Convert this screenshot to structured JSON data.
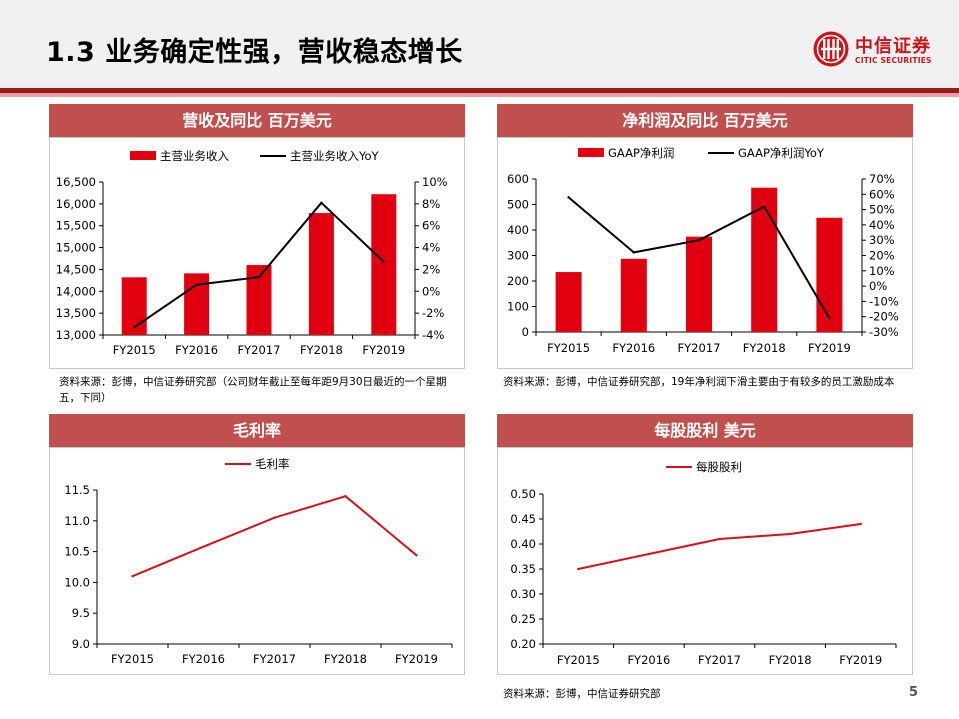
{
  "header": {
    "title": "1.3 业务确定性强，营收稳态增长",
    "logo_cn": "中信证券",
    "logo_en": "CITIC SECURITIES",
    "brand_color": "#c8161d"
  },
  "panels": {
    "revenue": {
      "title": "营收及同比  百万美元"
    },
    "net_income": {
      "title": "净利润及同比  百万美元"
    },
    "gross_margin": {
      "title": "毛利率"
    },
    "dps": {
      "title": "每股股利  美元"
    }
  },
  "notes": {
    "revenue": "资料来源：彭博，中信证券研究部（公司财年截止至每年距9月30日最近的一个星期五，下同）",
    "net_income": "资料来源：彭博，中信证券研究部，19年净利润下滑主要由于有较多的员工激励成本",
    "bottom": "资料来源：彭博，中信证券研究部"
  },
  "page_number": "5",
  "colors": {
    "bar": "#e0000f",
    "line_black": "#000000",
    "line_red": "#d4101e",
    "title_bar": "#c0504d"
  },
  "chart_data": [
    {
      "id": "revenue",
      "type": "bar",
      "categories": [
        "FY2015",
        "FY2016",
        "FY2017",
        "FY2018",
        "FY2019"
      ],
      "series": [
        {
          "name": "主营业务收入",
          "type": "bar",
          "axis": "left",
          "values": [
            14320,
            14410,
            14600,
            15790,
            16220
          ]
        },
        {
          "name": "主营业务收入YoY",
          "type": "line",
          "axis": "right",
          "values": [
            -3.3,
            0.6,
            1.3,
            8.1,
            2.7
          ]
        }
      ],
      "ylim": [
        13000,
        16500
      ],
      "yticks": [
        13000,
        13500,
        14000,
        14500,
        15000,
        15500,
        16000,
        16500
      ],
      "ytick_labels": [
        "13,000",
        "13,500",
        "14,000",
        "14,500",
        "15,000",
        "15,500",
        "16,000",
        "16,500"
      ],
      "y2lim": [
        -4,
        10
      ],
      "y2ticks": [
        -4,
        -2,
        0,
        2,
        4,
        6,
        8,
        10
      ],
      "y2tick_labels": [
        "-4%",
        "-2%",
        "0%",
        "2%",
        "4%",
        "6%",
        "8%",
        "10%"
      ],
      "legend": "top",
      "grid": false
    },
    {
      "id": "net_income",
      "type": "bar",
      "categories": [
        "FY2015",
        "FY2016",
        "FY2017",
        "FY2018",
        "FY2019"
      ],
      "series": [
        {
          "name": "GAAP净利润",
          "type": "bar",
          "axis": "left",
          "values": [
            235,
            287,
            374,
            566,
            448
          ]
        },
        {
          "name": "GAAP净利润YoY",
          "type": "line",
          "axis": "right",
          "values": [
            58,
            22,
            30,
            52,
            -21
          ]
        }
      ],
      "ylim": [
        0,
        600
      ],
      "yticks": [
        0,
        100,
        200,
        300,
        400,
        500,
        600
      ],
      "ytick_labels": [
        "0",
        "100",
        "200",
        "300",
        "400",
        "500",
        "600"
      ],
      "y2lim": [
        -30,
        70
      ],
      "y2ticks": [
        -30,
        -20,
        -10,
        0,
        10,
        20,
        30,
        40,
        50,
        60,
        70
      ],
      "y2tick_labels": [
        "-30%",
        "-20%",
        "-10%",
        "0%",
        "10%",
        "20%",
        "30%",
        "40%",
        "50%",
        "60%",
        "70%"
      ],
      "legend": "top",
      "grid": false
    },
    {
      "id": "gross_margin",
      "type": "line",
      "categories": [
        "FY2015",
        "FY2016",
        "FY2017",
        "FY2018",
        "FY2019"
      ],
      "series": [
        {
          "name": "毛利率",
          "type": "line",
          "axis": "left",
          "values": [
            10.1,
            10.58,
            11.05,
            11.4,
            10.44
          ]
        }
      ],
      "ylim": [
        9.0,
        11.5
      ],
      "yticks": [
        9.0,
        9.5,
        10.0,
        10.5,
        11.0,
        11.5
      ],
      "ytick_labels": [
        "9.0",
        "9.5",
        "10.0",
        "10.5",
        "11.0",
        "11.5"
      ],
      "legend": "top",
      "grid": false
    },
    {
      "id": "dps",
      "type": "line",
      "categories": [
        "FY2015",
        "FY2016",
        "FY2017",
        "FY2018",
        "FY2019"
      ],
      "series": [
        {
          "name": "每股股利",
          "type": "line",
          "axis": "left",
          "values": [
            0.35,
            0.38,
            0.41,
            0.42,
            0.44
          ]
        }
      ],
      "ylim": [
        0.2,
        0.5
      ],
      "yticks": [
        0.2,
        0.25,
        0.3,
        0.35,
        0.4,
        0.45,
        0.5
      ],
      "ytick_labels": [
        "0.20",
        "0.25",
        "0.30",
        "0.35",
        "0.40",
        "0.45",
        "0.50"
      ],
      "legend": "top",
      "grid": false
    }
  ]
}
